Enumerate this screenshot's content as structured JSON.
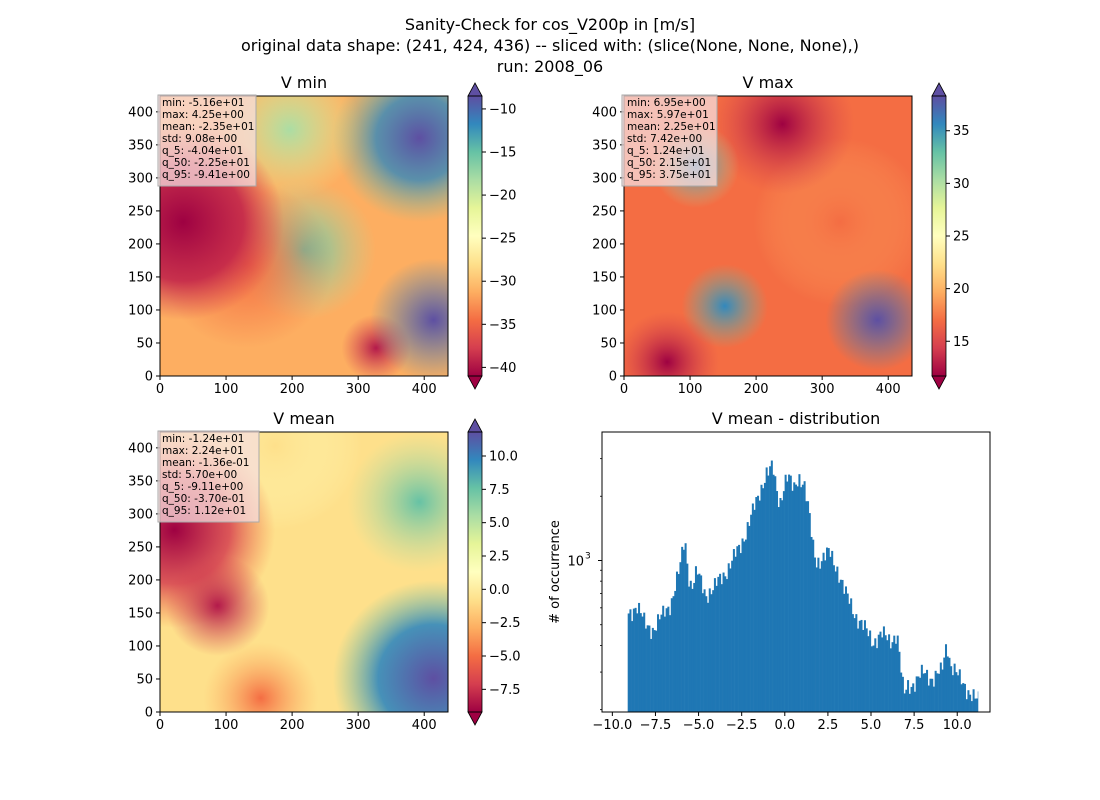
{
  "figure": {
    "title_lines": [
      "Sanity-Check for cos_V200p in [m/s]",
      "original data shape: (241, 424, 436) -- sliced with: (slice(None, None, None),)",
      "run: 2008_06"
    ]
  },
  "colors": {
    "spectral": [
      "#9e0142",
      "#d53e4f",
      "#f46d43",
      "#fdae61",
      "#fee08b",
      "#ffffbf",
      "#e6f598",
      "#abdda4",
      "#66c2a5",
      "#3288bd",
      "#5e4fa2"
    ],
    "histogram_bar": "#1f77b4",
    "stats_box": "#f5dede"
  },
  "chart_data": [
    {
      "type": "heatmap",
      "title": "V min",
      "colormap": "Spectral",
      "xlim": [
        0,
        436
      ],
      "ylim": [
        0,
        424
      ],
      "x_ticks": [
        "0",
        "100",
        "200",
        "300",
        "400"
      ],
      "y_ticks": [
        "0",
        "50",
        "100",
        "150",
        "200",
        "250",
        "300",
        "350",
        "400"
      ],
      "colorbar": {
        "range": [
          -41,
          -8.5
        ],
        "ticks": [
          "−10",
          "−15",
          "−20",
          "−25",
          "−30",
          "−35",
          "−40"
        ],
        "tick_values": [
          -10,
          -15,
          -20,
          -25,
          -30,
          -35,
          -40
        ],
        "extend": "both"
      },
      "stats": [
        "min: -5.16e+01",
        "max: 4.25e+00",
        "mean: -2.35e+01",
        "std: 9.08e+00",
        "q_5: -4.04e+01",
        "q_50: -2.25e+01",
        "q_95: -9.41e+00"
      ]
    },
    {
      "type": "heatmap",
      "title": "V max",
      "colormap": "Spectral",
      "xlim": [
        0,
        436
      ],
      "ylim": [
        0,
        424
      ],
      "x_ticks": [
        "0",
        "100",
        "200",
        "300",
        "400"
      ],
      "y_ticks": [
        "0",
        "50",
        "100",
        "150",
        "200",
        "250",
        "300",
        "350",
        "400"
      ],
      "colorbar": {
        "range": [
          11.7,
          38.3
        ],
        "ticks": [
          "35",
          "30",
          "25",
          "20",
          "15"
        ],
        "tick_values": [
          35,
          30,
          25,
          20,
          15
        ],
        "extend": "both"
      },
      "stats": [
        "min: 6.95e+00",
        "max: 5.97e+01",
        "mean: 2.25e+01",
        "std: 7.42e+00",
        "q_5: 1.24e+01",
        "q_50: 2.15e+01",
        "q_95: 3.75e+01"
      ]
    },
    {
      "type": "heatmap",
      "title": "V mean",
      "colormap": "Spectral",
      "xlim": [
        0,
        436
      ],
      "ylim": [
        0,
        424
      ],
      "x_ticks": [
        "0",
        "100",
        "200",
        "300",
        "400"
      ],
      "y_ticks": [
        "0",
        "50",
        "100",
        "150",
        "200",
        "250",
        "300",
        "350",
        "400"
      ],
      "colorbar": {
        "range": [
          -9.2,
          11.8
        ],
        "ticks": [
          "10.0",
          "7.5",
          "5.0",
          "2.5",
          "0.0",
          "−2.5",
          "−5.0",
          "−7.5"
        ],
        "tick_values": [
          10,
          7.5,
          5,
          2.5,
          0,
          -2.5,
          -5,
          -7.5
        ],
        "extend": "both"
      },
      "stats": [
        "min: -1.24e+01",
        "max: 2.24e+01",
        "mean: -1.36e-01",
        "std: 5.70e+00",
        "q_5: -9.11e+00",
        "q_50: -3.70e-01",
        "q_95: 1.12e+01"
      ]
    },
    {
      "type": "bar",
      "title": "V mean - distribution",
      "ylabel": "# of occurrence",
      "xlabel": "",
      "yscale": "log",
      "xlim": [
        -10.6,
        11.9
      ],
      "ylim": [
        195,
        4000
      ],
      "x_ticks": [
        "−10.0",
        "−7.5",
        "−5.0",
        "−2.5",
        "0.0",
        "2.5",
        "5.0",
        "7.5",
        "10.0"
      ],
      "x_tick_values": [
        -10,
        -7.5,
        -5,
        -2.5,
        0,
        2.5,
        5,
        7.5,
        10
      ],
      "y_ticks": [
        "10",
        "3"
      ],
      "y_tick_values": [
        1000
      ],
      "bin_range": [
        -9.11,
        11.2
      ],
      "bin_width": 0.1,
      "x": [
        -9.1,
        -8.6,
        -8.1,
        -7.6,
        -7.1,
        -6.6,
        -6.1,
        -5.8,
        -5.6,
        -5.4,
        -5.1,
        -4.6,
        -4.1,
        -3.6,
        -3.1,
        -2.6,
        -2.1,
        -1.6,
        -1.1,
        -0.7,
        -0.5,
        -0.3,
        -0.1,
        0.1,
        0.3,
        0.5,
        0.8,
        1.1,
        1.4,
        1.6,
        1.8,
        2.1,
        2.6,
        3.1,
        3.5,
        4.1,
        4.6,
        5.1,
        5.6,
        6.1,
        6.5,
        6.9,
        7.1,
        7.6,
        8.1,
        8.6,
        9.1,
        9.4,
        9.6,
        10.1,
        10.6,
        11.1
      ],
      "values": [
        560,
        620,
        500,
        480,
        550,
        640,
        900,
        1280,
        880,
        750,
        880,
        700,
        740,
        850,
        980,
        1150,
        1500,
        1900,
        2600,
        2700,
        2150,
        1850,
        2200,
        2500,
        2350,
        2100,
        2500,
        2350,
        1650,
        1200,
        1000,
        1020,
        1080,
        900,
        700,
        560,
        480,
        420,
        450,
        420,
        460,
        230,
        260,
        270,
        300,
        280,
        300,
        420,
        330,
        280,
        250,
        220
      ]
    }
  ]
}
